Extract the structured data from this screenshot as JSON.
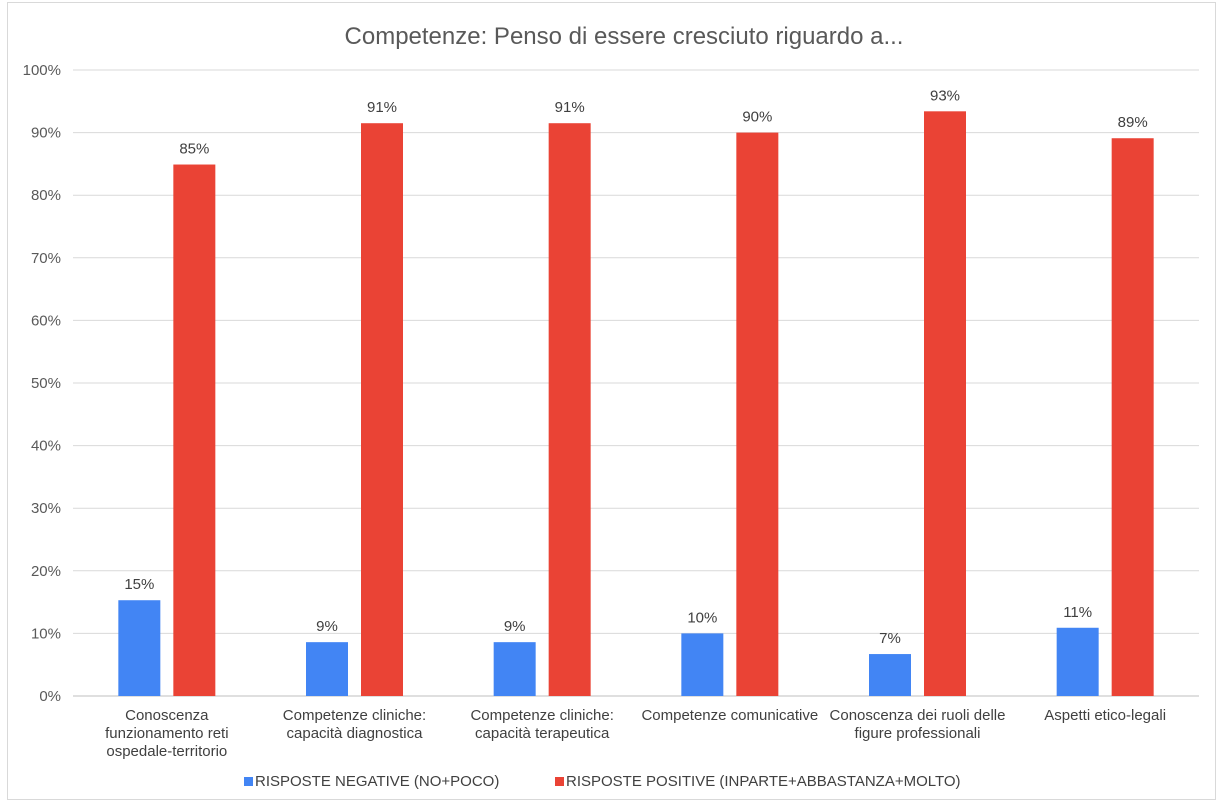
{
  "chart_data": {
    "type": "bar",
    "title": "Competenze: Penso di essere cresciuto riguardo a...",
    "xlabel": "",
    "ylabel": "",
    "ylim": [
      0,
      100
    ],
    "y_ticks": [
      "0%",
      "10%",
      "20%",
      "30%",
      "40%",
      "50%",
      "60%",
      "70%",
      "80%",
      "90%",
      "100%"
    ],
    "grid": true,
    "legend_position": "bottom",
    "categories": [
      [
        "Conoscenza",
        "funzionamento reti",
        "ospedale-territorio"
      ],
      [
        "Competenze cliniche:",
        "capacità diagnostica"
      ],
      [
        "Competenze cliniche:",
        "capacità terapeutica"
      ],
      [
        "Competenze comunicative"
      ],
      [
        "Conoscenza dei ruoli delle",
        "figure professionali"
      ],
      [
        "Aspetti etico-legali"
      ]
    ],
    "series": [
      {
        "name": "RISPOSTE NEGATIVE (NO+POCO)",
        "color": "#4285f4",
        "values": [
          15.3,
          8.6,
          8.6,
          10.0,
          6.7,
          10.9
        ],
        "labels": [
          "15%",
          "9%",
          "9%",
          "10%",
          "7%",
          "11%"
        ]
      },
      {
        "name": "RISPOSTE POSITIVE (INPARTE+ABBASTANZA+MOLTO)",
        "color": "#ea4335",
        "values": [
          84.9,
          91.5,
          91.5,
          90.0,
          93.4,
          89.1
        ],
        "labels": [
          "85%",
          "91%",
          "91%",
          "90%",
          "93%",
          "89%"
        ]
      }
    ]
  }
}
